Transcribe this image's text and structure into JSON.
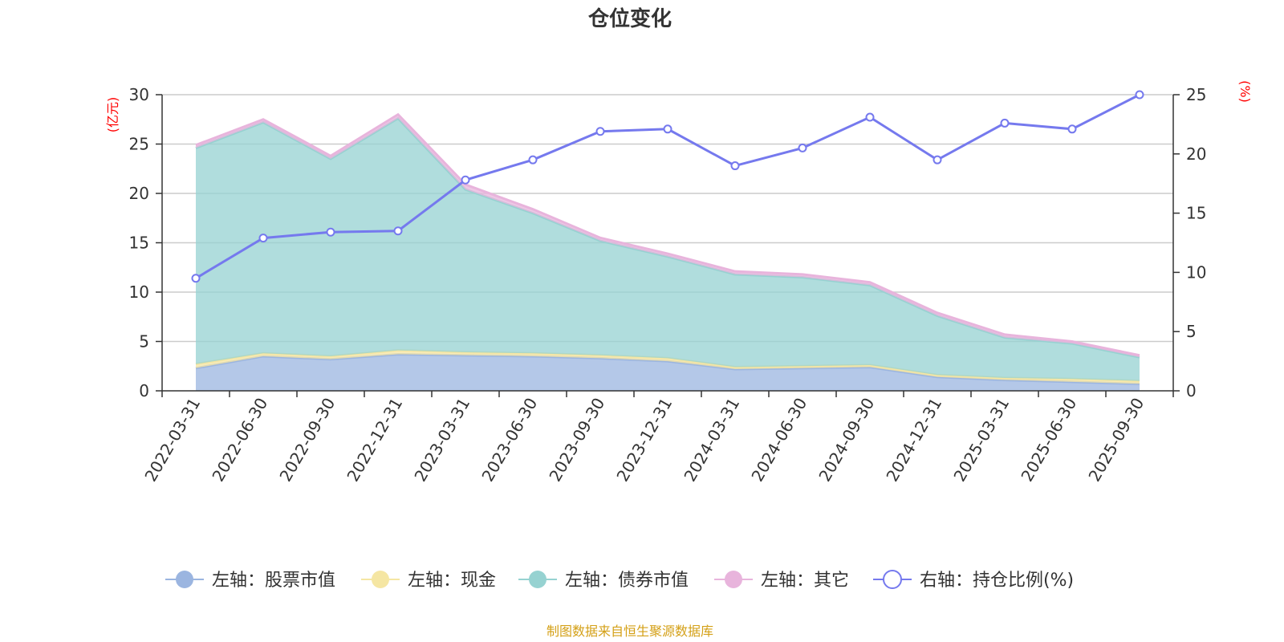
{
  "chart_data": {
    "type": "area",
    "title": "仓位变化",
    "source": "制图数据来自恒生聚源数据库",
    "left_axis": {
      "unit": "(亿元)",
      "ylim": [
        0,
        30
      ],
      "ticks": [
        0,
        5,
        10,
        15,
        20,
        25,
        30
      ],
      "unit_color": "#ff0000"
    },
    "right_axis": {
      "unit": "(%)",
      "ylim": [
        0,
        25
      ],
      "ticks": [
        0,
        5,
        10,
        15,
        20,
        25
      ],
      "unit_color": "#ff0000"
    },
    "categories": [
      "2022-03-31",
      "2022-06-30",
      "2022-09-30",
      "2022-12-31",
      "2023-03-31",
      "2023-06-30",
      "2023-09-30",
      "2023-12-31",
      "2024-03-31",
      "2024-06-30",
      "2024-09-30",
      "2024-12-31",
      "2025-03-31",
      "2025-06-30",
      "2025-09-30"
    ],
    "series": [
      {
        "name": "左轴：股票市值",
        "axis": "left",
        "kind": "stack-area",
        "color": "#9bb5e0",
        "values": [
          2.3,
          3.5,
          3.2,
          3.7,
          3.6,
          3.5,
          3.3,
          3.0,
          2.2,
          2.3,
          2.4,
          1.4,
          1.1,
          0.9,
          0.7
        ]
      },
      {
        "name": "左轴：现金",
        "axis": "left",
        "kind": "stack-area",
        "color": "#f5e6a3",
        "values": [
          0.4,
          0.3,
          0.3,
          0.4,
          0.3,
          0.3,
          0.3,
          0.3,
          0.2,
          0.2,
          0.2,
          0.2,
          0.2,
          0.3,
          0.3
        ]
      },
      {
        "name": "左轴：债券市值",
        "axis": "left",
        "kind": "stack-area",
        "color": "#96d2d1",
        "values": [
          21.9,
          23.4,
          20.0,
          23.5,
          16.5,
          14.2,
          11.6,
          10.3,
          9.4,
          9.0,
          8.1,
          6.0,
          4.1,
          3.6,
          2.4
        ]
      },
      {
        "name": "左轴：其它",
        "axis": "left",
        "kind": "stack-area",
        "color": "#e8b4dc",
        "values": [
          0.3,
          0.3,
          0.3,
          0.4,
          0.5,
          0.4,
          0.3,
          0.3,
          0.3,
          0.3,
          0.3,
          0.3,
          0.3,
          0.2,
          0.2
        ]
      },
      {
        "name": "右轴：持仓比例(%)",
        "axis": "right",
        "kind": "line",
        "color": "#7579ee",
        "values": [
          9.5,
          12.9,
          13.4,
          13.5,
          17.8,
          19.5,
          21.9,
          22.1,
          19.0,
          20.5,
          23.1,
          19.5,
          22.6,
          22.1,
          25.0
        ]
      }
    ]
  }
}
